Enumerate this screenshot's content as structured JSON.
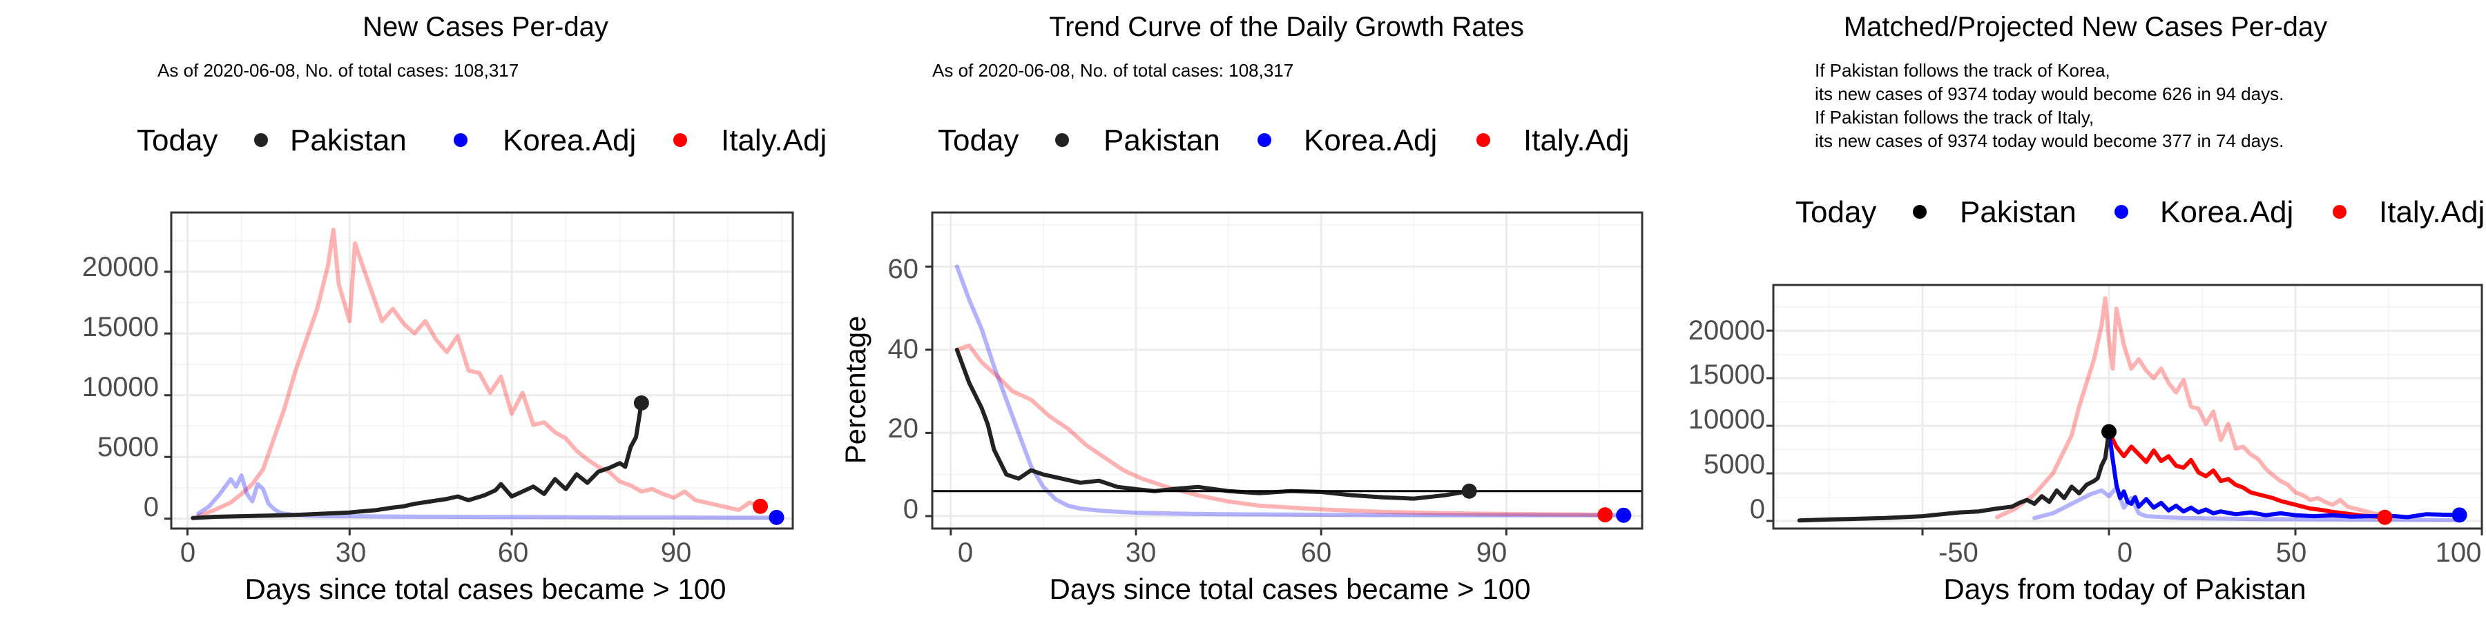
{
  "colors": {
    "pakistan": "#222222",
    "korea": "#0000ff",
    "italy": "#ff0000",
    "grid": "#ebebeb",
    "border": "#333333"
  },
  "legend": {
    "title": "Today",
    "items": [
      "Pakistan",
      "Korea.Adj",
      "Italy.Adj"
    ]
  },
  "panel1": {
    "title": "New Cases Per-day",
    "subtitle": "As of 2020-06-08, No. of total cases: 108,317",
    "xlabel": "Days since total cases became > 100",
    "ylabel": "",
    "xticks": [
      "0",
      "30",
      "60",
      "90"
    ],
    "yticks": [
      "0",
      "5000",
      "10000",
      "15000",
      "20000"
    ]
  },
  "panel2": {
    "title": "Trend Curve of the Daily Growth Rates",
    "subtitle": "As of 2020-06-08, No. of total cases: 108,317",
    "xlabel": "Days since total cases became > 100",
    "ylabel": "Percentage",
    "xticks": [
      "0",
      "30",
      "60",
      "90"
    ],
    "yticks": [
      "0",
      "20",
      "40",
      "60"
    ]
  },
  "panel3": {
    "title": "Matched/Projected New Cases Per-day",
    "notes": [
      "If Pakistan follows the track of Korea,",
      "its new cases of 9374 today would become 626 in 94 days.",
      "If Pakistan follows the track of Italy,",
      "its new cases of 9374 today would become 377 in 74 days."
    ],
    "xlabel": "Days from today of Pakistan",
    "ylabel": "",
    "xticks": [
      "-50",
      "0",
      "50",
      "100"
    ],
    "yticks": [
      "0",
      "5000",
      "10000",
      "15000",
      "20000"
    ]
  },
  "chart_data": [
    {
      "type": "line",
      "title": "New Cases Per-day",
      "xlabel": "Days since total cases became > 100",
      "xlim": [
        -3,
        112
      ],
      "ylim": [
        -800,
        24800
      ],
      "grid": true,
      "legend": "top",
      "series": [
        {
          "name": "Italy.Adj",
          "x": [
            2,
            5,
            8,
            10,
            12,
            14,
            16,
            18,
            20,
            22,
            24,
            26,
            27,
            28,
            30,
            31,
            32,
            34,
            36,
            38,
            40,
            42,
            44,
            46,
            48,
            50,
            52,
            54,
            56,
            58,
            60,
            62,
            64,
            66,
            68,
            70,
            72,
            74,
            76,
            78,
            80,
            82,
            84,
            86,
            88,
            90,
            92,
            94,
            96,
            98,
            100,
            102,
            104,
            106
          ],
          "values": [
            200,
            700,
            1300,
            2000,
            2800,
            4000,
            6500,
            9000,
            12000,
            14500,
            17000,
            20500,
            23400,
            19000,
            16000,
            22300,
            21000,
            18500,
            16000,
            17000,
            15800,
            15000,
            16000,
            14500,
            13500,
            14800,
            12000,
            11800,
            10200,
            11500,
            8500,
            10200,
            7600,
            7800,
            7000,
            6500,
            5500,
            4800,
            4200,
            3800,
            3000,
            2700,
            2200,
            2400,
            2000,
            1700,
            2200,
            1500,
            1300,
            1100,
            900,
            700,
            1300,
            1000
          ]
        },
        {
          "name": "Korea.Adj",
          "x": [
            2,
            4,
            6,
            8,
            9,
            10,
            11,
            12,
            13,
            14,
            15,
            16,
            17,
            18,
            20,
            22,
            25,
            28,
            30,
            35,
            40,
            50,
            60,
            70,
            80,
            90,
            100,
            110
          ],
          "values": [
            400,
            1000,
            2000,
            3200,
            2600,
            3500,
            2000,
            1400,
            2800,
            2400,
            1200,
            800,
            500,
            400,
            300,
            250,
            200,
            200,
            200,
            180,
            160,
            150,
            140,
            120,
            100,
            100,
            80,
            80
          ]
        },
        {
          "name": "Pakistan",
          "x": [
            1,
            5,
            10,
            15,
            20,
            25,
            30,
            35,
            38,
            40,
            42,
            45,
            48,
            50,
            52,
            55,
            57,
            58,
            60,
            62,
            64,
            66,
            68,
            70,
            72,
            74,
            76,
            78,
            80,
            81,
            82,
            83,
            84
          ],
          "values": [
            50,
            150,
            200,
            250,
            300,
            400,
            500,
            700,
            900,
            1000,
            1200,
            1400,
            1600,
            1800,
            1500,
            1900,
            2300,
            2800,
            1800,
            2200,
            2600,
            2000,
            3200,
            2400,
            3600,
            2900,
            3800,
            4100,
            4500,
            4200,
            5800,
            6600,
            9374
          ]
        }
      ],
      "today_points": [
        {
          "name": "Pakistan",
          "x": 84,
          "y": 9374
        },
        {
          "name": "Korea.Adj",
          "x": 109,
          "y": 100
        },
        {
          "name": "Italy.Adj",
          "x": 106,
          "y": 1000
        }
      ]
    },
    {
      "type": "line",
      "title": "Trend Curve of the Daily Growth Rates",
      "xlabel": "Days since total cases became > 100",
      "ylabel": "Percentage",
      "xlim": [
        -3,
        112
      ],
      "ylim": [
        -3,
        73
      ],
      "grid": true,
      "legend": "top",
      "reference_line": 6,
      "series": [
        {
          "name": "Korea.Adj",
          "x": [
            1,
            3,
            5,
            7,
            9,
            11,
            13,
            15,
            17,
            19,
            21,
            25,
            30,
            40,
            50,
            60,
            80,
            100,
            110
          ],
          "values": [
            60,
            52,
            45,
            36,
            28,
            20,
            12,
            7,
            4,
            2.5,
            1.8,
            1.2,
            0.8,
            0.5,
            0.4,
            0.3,
            0.2,
            0.2,
            0.2
          ]
        },
        {
          "name": "Italy.Adj",
          "x": [
            1,
            3,
            5,
            8,
            10,
            13,
            16,
            19,
            22,
            25,
            28,
            31,
            35,
            40,
            45,
            50,
            60,
            70,
            80,
            90,
            100,
            106
          ],
          "values": [
            40,
            41,
            37,
            33,
            30,
            28,
            24,
            21,
            17,
            14,
            11,
            9,
            7,
            5,
            3.5,
            2.5,
            1.6,
            1,
            0.7,
            0.5,
            0.4,
            0.3
          ]
        },
        {
          "name": "Pakistan",
          "x": [
            1,
            3,
            5,
            6,
            7,
            9,
            11,
            13,
            15,
            18,
            21,
            24,
            27,
            30,
            33,
            36,
            40,
            45,
            50,
            55,
            60,
            65,
            70,
            75,
            80,
            84
          ],
          "values": [
            40,
            32,
            26,
            22,
            16,
            10,
            9,
            11,
            10,
            9,
            8,
            8.5,
            7,
            6.5,
            6,
            6.5,
            7,
            6,
            5.5,
            6,
            5.8,
            5,
            4.5,
            4.2,
            5,
            6
          ]
        }
      ],
      "today_points": [
        {
          "name": "Pakistan",
          "x": 84,
          "y": 6
        },
        {
          "name": "Korea.Adj",
          "x": 109,
          "y": 0.2
        },
        {
          "name": "Italy.Adj",
          "x": 106,
          "y": 0.3
        }
      ]
    },
    {
      "type": "line",
      "title": "Matched/Projected New Cases Per-day",
      "xlabel": "Days from today of Pakistan",
      "xlim": [
        -90,
        100
      ],
      "ylim": [
        -800,
        24800
      ],
      "grid": true,
      "legend": "top",
      "series": [
        {
          "name": "Pakistan",
          "x": [
            -83,
            -75,
            -70,
            -60,
            -50,
            -45,
            -40,
            -35,
            -30,
            -26,
            -24,
            -22,
            -20,
            -18,
            -16,
            -14,
            -12,
            -10,
            -8,
            -6,
            -4,
            -3,
            -2,
            -1,
            0
          ],
          "values": [
            50,
            150,
            200,
            300,
            500,
            700,
            900,
            1000,
            1300,
            1500,
            1900,
            2200,
            1800,
            2600,
            2000,
            3200,
            2400,
            3600,
            2900,
            3800,
            4200,
            4500,
            5800,
            6600,
            9374
          ]
        },
        {
          "name": "Italy.Adj (matched)",
          "x": [
            -30,
            -25,
            -20,
            -15,
            -10,
            -8,
            -6,
            -4,
            -2,
            -1,
            0,
            1,
            2,
            4,
            6,
            8,
            10,
            12,
            14,
            16,
            18,
            20,
            22,
            24,
            26,
            28,
            30,
            32,
            34,
            36,
            38,
            40,
            42,
            44,
            46,
            48,
            50,
            52,
            54,
            56,
            58,
            60,
            62,
            64,
            66,
            68,
            70,
            72,
            74
          ],
          "values": [
            400,
            1300,
            2800,
            5000,
            9000,
            12000,
            14500,
            17000,
            20500,
            23400,
            19000,
            16000,
            22300,
            18500,
            16000,
            17000,
            15800,
            15000,
            16000,
            14500,
            13500,
            14800,
            12000,
            11800,
            10200,
            11500,
            8500,
            10200,
            7600,
            7800,
            7000,
            6500,
            5500,
            4800,
            4200,
            3800,
            3000,
            2700,
            2200,
            2400,
            2000,
            1700,
            2200,
            1500,
            1300,
            1100,
            900,
            700,
            1000
          ]
        },
        {
          "name": "Italy.Adj (projected)",
          "x": [
            0,
            2,
            4,
            6,
            8,
            10,
            12,
            14,
            16,
            18,
            20,
            22,
            24,
            26,
            28,
            30,
            32,
            34,
            36,
            38,
            40,
            42,
            44,
            46,
            48,
            50,
            52,
            54,
            56,
            58,
            60,
            62,
            64,
            66,
            68,
            70,
            72,
            74
          ],
          "values": [
            9374,
            7800,
            6800,
            7800,
            7000,
            6200,
            7400,
            6300,
            6800,
            5800,
            5600,
            6400,
            5100,
            4700,
            5300,
            4200,
            4400,
            3800,
            3500,
            3000,
            2800,
            2600,
            2400,
            2100,
            1900,
            1700,
            1500,
            1300,
            1200,
            1100,
            950,
            850,
            750,
            650,
            550,
            500,
            450,
            377
          ]
        },
        {
          "name": "Korea.Adj (matched)",
          "x": [
            -20,
            -15,
            -10,
            -5,
            -2,
            0,
            2,
            4,
            6,
            8,
            10,
            15,
            20,
            30,
            40,
            50,
            60,
            70,
            80,
            90,
            94
          ],
          "values": [
            300,
            800,
            1800,
            2800,
            3200,
            2600,
            3500,
            1400,
            2400,
            800,
            500,
            400,
            300,
            250,
            200,
            180,
            160,
            140,
            120,
            100,
            100
          ]
        },
        {
          "name": "Korea.Adj (projected)",
          "x": [
            0,
            1,
            2,
            3,
            4,
            5,
            6,
            7,
            8,
            10,
            12,
            14,
            16,
            18,
            20,
            22,
            24,
            26,
            28,
            30,
            34,
            38,
            42,
            46,
            50,
            55,
            60,
            65,
            70,
            75,
            80,
            85,
            90,
            94
          ],
          "values": [
            9374,
            6500,
            3800,
            2400,
            3100,
            2000,
            1800,
            2500,
            1500,
            2300,
            1400,
            1900,
            1100,
            1600,
            1000,
            1400,
            900,
            1200,
            800,
            1000,
            700,
            900,
            600,
            800,
            600,
            500,
            600,
            450,
            500,
            550,
            400,
            700,
            650,
            626
          ]
        }
      ],
      "today_points": [
        {
          "name": "Pakistan",
          "x": 0,
          "y": 9374
        },
        {
          "name": "Korea.Adj",
          "x": 94,
          "y": 626
        },
        {
          "name": "Italy.Adj",
          "x": 74,
          "y": 377
        }
      ]
    }
  ]
}
